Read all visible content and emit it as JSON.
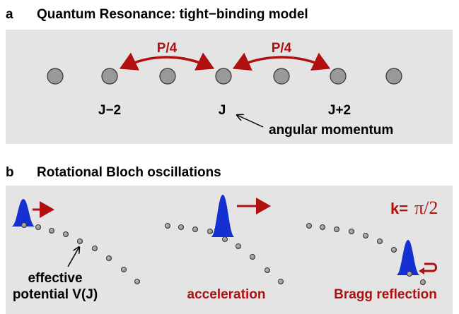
{
  "panel_a": {
    "label": "a",
    "title": "Quantum Resonance: tight−binding model",
    "couplings": [
      "P/4",
      "P/4"
    ],
    "sites": [
      "J−2",
      "J",
      "J+2"
    ],
    "annotation": "angular momentum"
  },
  "panel_b": {
    "label": "b",
    "title": "Rotational Bloch oscillations",
    "annotation_lines": [
      "effective",
      "potential V(J)"
    ],
    "stages": [
      "acceleration",
      "Bragg reflection"
    ],
    "momentum_label": "k=",
    "momentum_value": "π/2"
  }
}
